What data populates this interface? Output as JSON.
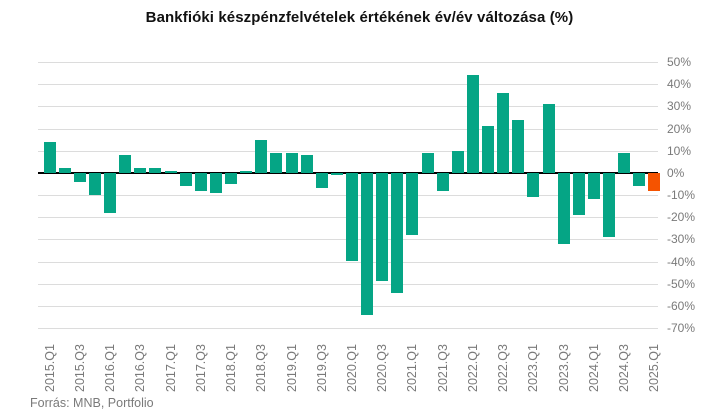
{
  "chart_data": {
    "type": "bar",
    "title": "Bankfióki készpénzfelvételek értékének év/év változása (%)",
    "categories": [
      "2015.Q1",
      "2015.Q2",
      "2015.Q3",
      "2015.Q4",
      "2016.Q1",
      "2016.Q2",
      "2016.Q3",
      "2016.Q4",
      "2017.Q1",
      "2017.Q2",
      "2017.Q3",
      "2017.Q4",
      "2018.Q1",
      "2018.Q2",
      "2018.Q3",
      "2018.Q4",
      "2019.Q1",
      "2019.Q2",
      "2019.Q3",
      "2019.Q4",
      "2020.Q1",
      "2020.Q2",
      "2020.Q3",
      "2020.Q4",
      "2021.Q1",
      "2021.Q2",
      "2021.Q3",
      "2021.Q4",
      "2022.Q1",
      "2022.Q2",
      "2022.Q3",
      "2022.Q4",
      "2023.Q1",
      "2023.Q2",
      "2023.Q3",
      "2023.Q4",
      "2024.Q1",
      "2024.Q2",
      "2024.Q3",
      "2024.Q4",
      "2025.Q1"
    ],
    "values": [
      14,
      2,
      -4,
      -10,
      -18,
      8,
      2,
      2,
      1,
      -6,
      -8,
      -9,
      -5,
      1,
      15,
      9,
      9,
      8,
      -7,
      -1,
      -40,
      -64,
      -49,
      -54,
      -28,
      9,
      -8,
      10,
      44,
      21,
      36,
      24,
      -11,
      31,
      -32,
      -19,
      -12,
      -29,
      9,
      -6,
      -8
    ],
    "highlight_category": "2025.Q1",
    "ylim": [
      -70,
      50
    ],
    "ytick_step": 10,
    "ytick_labels": [
      "50%",
      "40%",
      "30%",
      "20%",
      "10%",
      "0%",
      "-10%",
      "-20%",
      "-30%",
      "-40%",
      "-50%",
      "-60%",
      "-70%"
    ],
    "ytick_values": [
      50,
      40,
      30,
      20,
      10,
      0,
      -10,
      -20,
      -30,
      -40,
      -50,
      -60,
      -70
    ],
    "x_label_every": 2,
    "grid": "on",
    "legend": "none",
    "xlabel": "",
    "ylabel": ""
  },
  "colors": {
    "bar": "#05A585",
    "highlight": "#F55300",
    "grid": "#DCDCDC",
    "zero_line": "#000000",
    "tick_label": "#7A7A7A",
    "title": "#111111"
  },
  "source": {
    "text": "Forrás: MNB, Portfolio"
  }
}
